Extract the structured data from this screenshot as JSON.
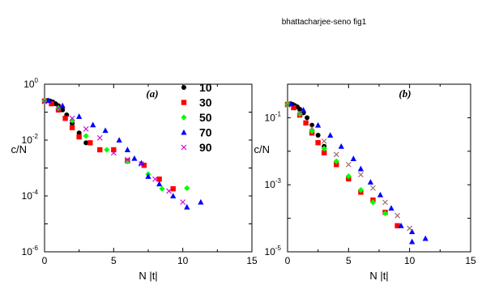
{
  "page_header": "bhattacharjee-seno fig1",
  "chart_data": [
    {
      "type": "scatter",
      "panel_label": "(a)",
      "xlabel": "N |t|",
      "ylabel": "c/N",
      "xlim": [
        0,
        15
      ],
      "ylim": [
        1e-06,
        1
      ],
      "yscale": "log",
      "x_ticks": [
        "0",
        "5",
        "10",
        "15"
      ],
      "y_ticks": [
        {
          "base": "10",
          "exp": "0"
        },
        {
          "base": "10",
          "exp": "-2"
        },
        {
          "base": "10",
          "exp": "-4"
        },
        {
          "base": "10",
          "exp": "-6"
        }
      ],
      "legend_position": "top-right",
      "series": [
        {
          "name": "10",
          "marker": "circle",
          "color": "#000000",
          "points": [
            [
              0.0,
              0.25
            ],
            [
              0.2,
              0.26
            ],
            [
              0.4,
              0.25
            ],
            [
              0.6,
              0.23
            ],
            [
              0.8,
              0.2
            ],
            [
              1.0,
              0.17
            ],
            [
              1.3,
              0.12
            ],
            [
              1.6,
              0.08
            ],
            [
              2.0,
              0.04
            ],
            [
              2.5,
              0.018
            ],
            [
              3.0,
              0.008
            ]
          ]
        },
        {
          "name": "30",
          "marker": "square",
          "color": "#ff0000",
          "points": [
            [
              0.0,
              0.25
            ],
            [
              0.5,
              0.2
            ],
            [
              1.0,
              0.12
            ],
            [
              1.5,
              0.06
            ],
            [
              2.0,
              0.028
            ],
            [
              2.5,
              0.013
            ],
            [
              3.3,
              0.008
            ],
            [
              4.0,
              0.0045
            ],
            [
              5.0,
              0.0045
            ],
            [
              6.0,
              0.0018
            ],
            [
              7.2,
              0.00125
            ],
            [
              8.3,
              0.0004
            ],
            [
              9.3,
              0.00018
            ]
          ]
        },
        {
          "name": "50",
          "marker": "diamond",
          "color": "#00ff00",
          "points": [
            [
              0.0,
              0.25
            ],
            [
              1.0,
              0.14
            ],
            [
              2.0,
              0.05
            ],
            [
              3.0,
              0.014
            ],
            [
              4.5,
              0.0045
            ],
            [
              6.0,
              0.0017
            ],
            [
              7.5,
              0.0006
            ],
            [
              8.5,
              0.00018
            ],
            [
              10.3,
              0.00019
            ]
          ]
        },
        {
          "name": "70",
          "marker": "triangle",
          "color": "#0000ff",
          "points": [
            [
              0.3,
              0.26
            ],
            [
              1.3,
              0.17
            ],
            [
              2.5,
              0.07
            ],
            [
              3.5,
              0.035
            ],
            [
              4.4,
              0.022
            ],
            [
              5.4,
              0.01
            ],
            [
              6.0,
              0.0045
            ],
            [
              6.5,
              0.0022
            ],
            [
              7.0,
              0.0015
            ],
            [
              7.5,
              0.0005
            ],
            [
              8.3,
              0.00027
            ],
            [
              9.3,
              0.0001
            ],
            [
              10.3,
              4e-05
            ],
            [
              11.3,
              6e-05
            ]
          ]
        },
        {
          "name": "90",
          "marker": "cross",
          "color": "#cc00cc",
          "points": [
            [
              0.0,
              0.24
            ],
            [
              1.0,
              0.14
            ],
            [
              2.0,
              0.06
            ],
            [
              3.0,
              0.025
            ],
            [
              4.0,
              0.012
            ],
            [
              5.0,
              0.0035
            ],
            [
              6.0,
              0.002
            ],
            [
              7.0,
              0.0014
            ],
            [
              8.0,
              0.0004
            ],
            [
              9.0,
              0.00015
            ],
            [
              10.0,
              6e-05
            ]
          ]
        }
      ]
    },
    {
      "type": "scatter",
      "panel_label": "(b)",
      "xlabel": "N |t|",
      "ylabel": "c/N",
      "xlim": [
        0,
        15
      ],
      "ylim": [
        1e-05,
        1
      ],
      "yscale": "log",
      "x_ticks": [
        "0",
        "5",
        "10",
        "15"
      ],
      "y_ticks": [
        {
          "base": "10",
          "exp": "-1"
        },
        {
          "base": "10",
          "exp": "-3"
        },
        {
          "base": "10",
          "exp": "-5"
        }
      ],
      "series": [
        {
          "name": "10",
          "marker": "circle",
          "color": "#000000",
          "points": [
            [
              0.0,
              0.25
            ],
            [
              0.2,
              0.26
            ],
            [
              0.4,
              0.25
            ],
            [
              0.6,
              0.23
            ],
            [
              0.8,
              0.21
            ],
            [
              1.0,
              0.18
            ],
            [
              1.3,
              0.14
            ],
            [
              1.6,
              0.1
            ],
            [
              2.0,
              0.06
            ],
            [
              2.5,
              0.03
            ],
            [
              3.0,
              0.014
            ]
          ]
        },
        {
          "name": "30",
          "marker": "square",
          "color": "#ff0000",
          "points": [
            [
              0.0,
              0.25
            ],
            [
              0.5,
              0.2
            ],
            [
              1.0,
              0.12
            ],
            [
              1.5,
              0.07
            ],
            [
              2.0,
              0.035
            ],
            [
              2.5,
              0.018
            ],
            [
              3.0,
              0.009
            ],
            [
              4.0,
              0.004
            ],
            [
              5.0,
              0.0015
            ],
            [
              6.0,
              0.0006
            ],
            [
              7.0,
              0.00035
            ],
            [
              8.0,
              0.00015
            ],
            [
              9.0,
              6e-05
            ]
          ]
        },
        {
          "name": "50",
          "marker": "diamond",
          "color": "#00ff00",
          "points": [
            [
              0.0,
              0.25
            ],
            [
              1.0,
              0.13
            ],
            [
              2.0,
              0.04
            ],
            [
              3.0,
              0.012
            ],
            [
              4.0,
              0.005
            ],
            [
              5.0,
              0.0018
            ],
            [
              6.0,
              0.0007
            ],
            [
              7.0,
              0.0003
            ],
            [
              8.0,
              0.00014
            ]
          ]
        },
        {
          "name": "70",
          "marker": "triangle",
          "color": "#0000ff",
          "points": [
            [
              0.3,
              0.26
            ],
            [
              1.3,
              0.17
            ],
            [
              2.5,
              0.06
            ],
            [
              3.5,
              0.03
            ],
            [
              4.4,
              0.014
            ],
            [
              5.4,
              0.006
            ],
            [
              6.0,
              0.003
            ],
            [
              6.8,
              0.0012
            ],
            [
              7.6,
              0.0005
            ],
            [
              8.5,
              0.0002
            ],
            [
              9.3,
              6e-05
            ],
            [
              10.2,
              2e-05
            ],
            [
              10.2,
              4e-05
            ],
            [
              11.3,
              2.5e-05
            ]
          ]
        },
        {
          "name": "90",
          "marker": "cross",
          "color": "#996666",
          "points": [
            [
              0.0,
              0.24
            ],
            [
              1.0,
              0.14
            ],
            [
              2.0,
              0.05
            ],
            [
              3.0,
              0.02
            ],
            [
              4.0,
              0.008
            ],
            [
              5.0,
              0.004
            ],
            [
              6.0,
              0.002
            ],
            [
              7.0,
              0.0008
            ],
            [
              8.0,
              0.0003
            ],
            [
              9.0,
              0.00012
            ],
            [
              10.0,
              5e-05
            ]
          ]
        }
      ]
    }
  ]
}
